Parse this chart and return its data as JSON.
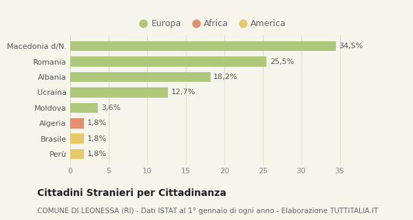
{
  "categories": [
    "Perù",
    "Brasile",
    "Algeria",
    "Moldova",
    "Ucraina",
    "Albania",
    "Romania",
    "Macedonia d/N."
  ],
  "values": [
    1.8,
    1.8,
    1.8,
    3.6,
    12.7,
    18.2,
    25.5,
    34.5
  ],
  "labels": [
    "1,8%",
    "1,8%",
    "1,8%",
    "3,6%",
    "12,7%",
    "18,2%",
    "25,5%",
    "34,5%"
  ],
  "colors": [
    "#e8c96a",
    "#e8c96a",
    "#e09070",
    "#adc87a",
    "#adc87a",
    "#adc87a",
    "#adc87a",
    "#adc87a"
  ],
  "legend": [
    {
      "label": "Europa",
      "color": "#adc87a"
    },
    {
      "label": "Africa",
      "color": "#e09070"
    },
    {
      "label": "America",
      "color": "#e8c96a"
    }
  ],
  "xlim": [
    0,
    37
  ],
  "xticks": [
    0,
    5,
    10,
    15,
    20,
    25,
    30,
    35
  ],
  "title": "Cittadini Stranieri per Cittadinanza",
  "subtitle": "COMUNE DI LEONESSA (RI) - Dati ISTAT al 1° gennaio di ogni anno - Elaborazione TUTTITALIA.IT",
  "background_color": "#f5f5eb",
  "grid_color": "#ddddcc",
  "bar_height": 0.65,
  "label_fontsize": 8,
  "title_fontsize": 10,
  "subtitle_fontsize": 7.5,
  "tick_fontsize": 8,
  "legend_fontsize": 9,
  "ylabel_fontsize": 8
}
